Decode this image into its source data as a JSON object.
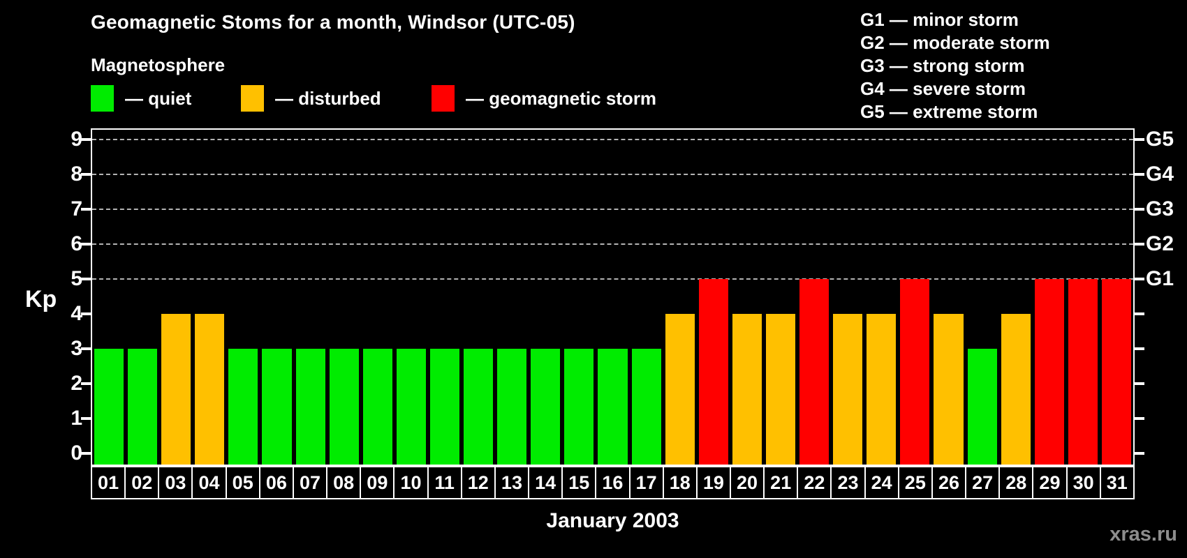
{
  "header": {
    "title": "Geomagnetic Stoms for a month, Windsor (UTC-05)"
  },
  "legend": {
    "heading": "Magnetosphere",
    "items": [
      {
        "name": "quiet",
        "label": "— quiet",
        "color": "#00ec00"
      },
      {
        "name": "disturbed",
        "label": "— disturbed",
        "color": "#ffc000"
      },
      {
        "name": "storm",
        "label": "— geomagnetic storm",
        "color": "#ff0000"
      }
    ]
  },
  "g_scale": [
    {
      "code": "G1",
      "label": "G1 — minor storm"
    },
    {
      "code": "G2",
      "label": "G2 — moderate storm"
    },
    {
      "code": "G3",
      "label": "G3 — strong storm"
    },
    {
      "code": "G4",
      "label": "G4 — severe storm"
    },
    {
      "code": "G5",
      "label": "G5 — extreme storm"
    }
  ],
  "watermark": "xras.ru",
  "chart_data": {
    "type": "bar",
    "title": "Geomagnetic Stoms for a month, Windsor (UTC-05)",
    "xlabel": "January 2003",
    "ylabel": "Kp",
    "ylim": [
      0,
      9
    ],
    "yticks": [
      0,
      1,
      2,
      3,
      4,
      5,
      6,
      7,
      8,
      9
    ],
    "gridlines": [
      5,
      6,
      7,
      8,
      9
    ],
    "grid": "horizontal dashed lines only at Kp 5-9 (storm levels)",
    "legend_position": "top-left (magnetosphere states), top-right (G-scale)",
    "right_axis_labels": [
      {
        "kp": 5,
        "label": "G1"
      },
      {
        "kp": 6,
        "label": "G2"
      },
      {
        "kp": 7,
        "label": "G3"
      },
      {
        "kp": 8,
        "label": "G4"
      },
      {
        "kp": 9,
        "label": "G5"
      }
    ],
    "categories": [
      "01",
      "02",
      "03",
      "04",
      "05",
      "06",
      "07",
      "08",
      "09",
      "10",
      "11",
      "12",
      "13",
      "14",
      "15",
      "16",
      "17",
      "18",
      "19",
      "20",
      "21",
      "22",
      "23",
      "24",
      "25",
      "26",
      "27",
      "28",
      "29",
      "30",
      "31"
    ],
    "values": [
      3,
      3,
      4,
      4,
      3,
      3,
      3,
      3,
      3,
      3,
      3,
      3,
      3,
      3,
      3,
      3,
      3,
      4,
      5,
      4,
      4,
      5,
      4,
      4,
      5,
      4,
      3,
      4,
      5,
      5,
      5
    ],
    "statuses": [
      "quiet",
      "quiet",
      "disturbed",
      "disturbed",
      "quiet",
      "quiet",
      "quiet",
      "quiet",
      "quiet",
      "quiet",
      "quiet",
      "quiet",
      "quiet",
      "quiet",
      "quiet",
      "quiet",
      "quiet",
      "disturbed",
      "storm",
      "disturbed",
      "disturbed",
      "storm",
      "disturbed",
      "disturbed",
      "storm",
      "disturbed",
      "quiet",
      "disturbed",
      "storm",
      "storm",
      "storm"
    ],
    "colors": {
      "quiet": "#00ec00",
      "disturbed": "#ffc000",
      "storm": "#ff0000"
    }
  }
}
